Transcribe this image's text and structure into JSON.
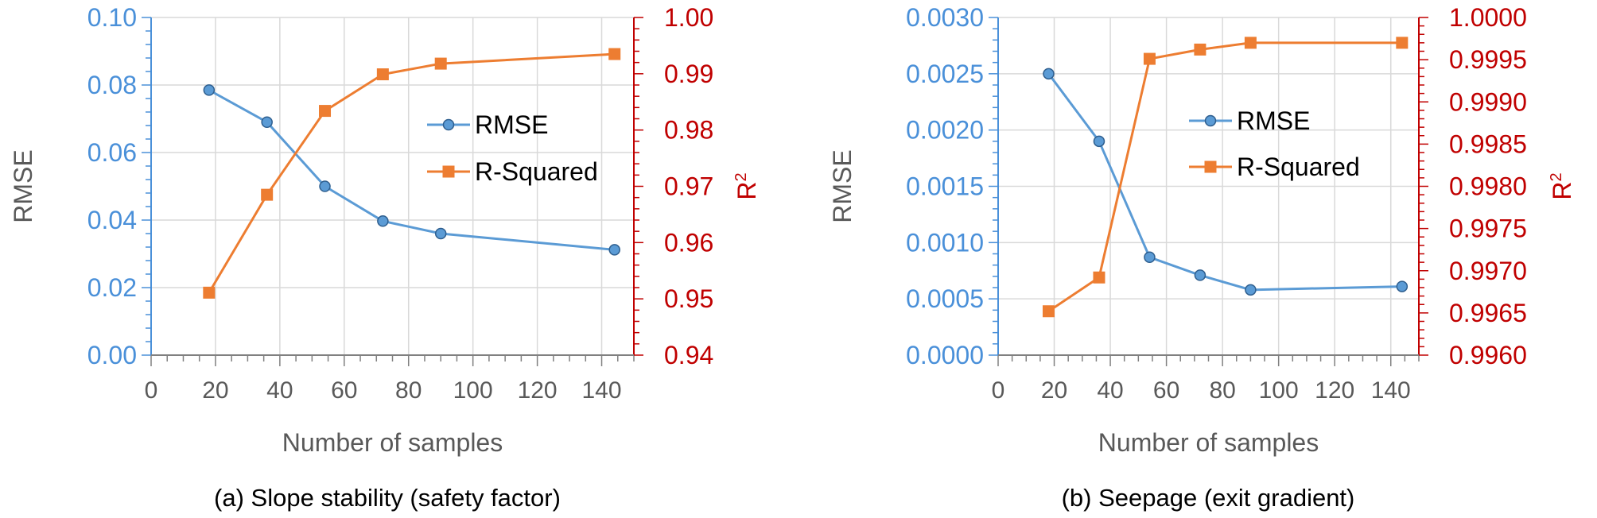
{
  "colors": {
    "rmse": "#5B9BD5",
    "rmse_axis": "#4A90D9",
    "r2": "#ED7D31",
    "r2_axis": "#C00000",
    "axis_text": "#595959",
    "grid": "#D9D9D9"
  },
  "chart_data": [
    {
      "type": "line",
      "caption": "(a) Slope stability (safety factor)",
      "xlabel": "Number of samples",
      "ylabel_left": "RMSE",
      "ylabel_right_base": "R",
      "ylabel_right_sup": "2",
      "xlim": [
        0,
        150
      ],
      "x_ticks": [
        "0",
        "20",
        "40",
        "60",
        "80",
        "100",
        "120",
        "140"
      ],
      "ylim_left": [
        0,
        0.1
      ],
      "y_left_ticks": [
        "0.00",
        "0.02",
        "0.04",
        "0.06",
        "0.08",
        "0.10"
      ],
      "ylim_right": [
        0.94,
        1.0
      ],
      "y_right_ticks": [
        "0.94",
        "0.95",
        "0.96",
        "0.97",
        "0.98",
        "0.99",
        "1.00"
      ],
      "grid": true,
      "legend_position": "center-right",
      "series": [
        {
          "name": "RMSE",
          "axis": "left",
          "marker": "circle",
          "x": [
            18,
            36,
            54,
            72,
            90,
            144
          ],
          "y": [
            0.0785,
            0.069,
            0.05,
            0.0397,
            0.036,
            0.0312
          ]
        },
        {
          "name": "R-Squared",
          "axis": "right",
          "marker": "square",
          "x": [
            18,
            36,
            54,
            72,
            90,
            144
          ],
          "y": [
            0.9511,
            0.9685,
            0.9834,
            0.9899,
            0.9918,
            0.9935
          ]
        }
      ]
    },
    {
      "type": "line",
      "caption": "(b) Seepage (exit gradient)",
      "xlabel": "Number of samples",
      "ylabel_left": "RMSE",
      "ylabel_right_base": "R",
      "ylabel_right_sup": "2",
      "xlim": [
        0,
        150
      ],
      "x_ticks": [
        "0",
        "20",
        "40",
        "60",
        "80",
        "100",
        "120",
        "140"
      ],
      "ylim_left": [
        0,
        0.003
      ],
      "y_left_ticks": [
        "0.0000",
        "0.0005",
        "0.0010",
        "0.0015",
        "0.0020",
        "0.0025",
        "0.0030"
      ],
      "ylim_right": [
        0.996,
        1.0
      ],
      "y_right_ticks": [
        "0.9960",
        "0.9965",
        "0.9970",
        "0.9975",
        "0.9980",
        "0.9985",
        "0.9990",
        "0.9995",
        "1.0000"
      ],
      "grid": true,
      "legend_position": "center-right",
      "series": [
        {
          "name": "RMSE",
          "axis": "left",
          "marker": "circle",
          "x": [
            18,
            36,
            54,
            72,
            90,
            144
          ],
          "y": [
            0.0025,
            0.0019,
            0.00087,
            0.00071,
            0.00058,
            0.00061
          ]
        },
        {
          "name": "R-Squared",
          "axis": "right",
          "marker": "square",
          "x": [
            18,
            36,
            54,
            72,
            90,
            144
          ],
          "y": [
            0.99652,
            0.99692,
            0.99951,
            0.99962,
            0.9997,
            0.9997
          ]
        }
      ]
    }
  ]
}
